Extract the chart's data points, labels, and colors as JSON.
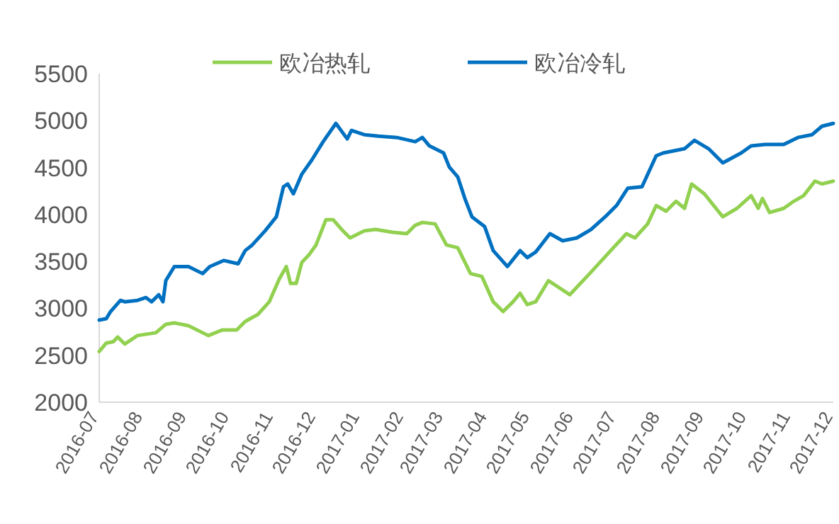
{
  "chart_data": {
    "type": "line",
    "legend": "top",
    "line_style": "solid",
    "marker": "none",
    "ylim": [
      2000,
      5500
    ],
    "yticks": [
      2000,
      2500,
      3000,
      3500,
      4000,
      4500,
      5000,
      5500
    ],
    "xlim": [
      "2016-07-01",
      "2017-12-01"
    ],
    "xticks": [
      "2016-07",
      "2016-08",
      "2016-09",
      "2016-10",
      "2016-11",
      "2016-12",
      "2017-01",
      "2017-02",
      "2017-03",
      "2017-04",
      "2017-05",
      "2017-06",
      "2017-07",
      "2017-08",
      "2017-09",
      "2017-10",
      "2017-11",
      "2017-12"
    ],
    "series": [
      {
        "name": "欧冶热轧",
        "color": "#92d050",
        "x": [
          "2016-07-01",
          "2016-07-06",
          "2016-07-11",
          "2016-07-14",
          "2016-07-19",
          "2016-07-28",
          "2016-08-10",
          "2016-08-17",
          "2016-08-23",
          "2016-09-02",
          "2016-09-16",
          "2016-09-26",
          "2016-10-06",
          "2016-10-12",
          "2016-10-21",
          "2016-10-29",
          "2016-11-05",
          "2016-11-10",
          "2016-11-13",
          "2016-11-17",
          "2016-11-21",
          "2016-11-26",
          "2016-12-01",
          "2016-12-08",
          "2016-12-13",
          "2016-12-20",
          "2016-12-25",
          "2017-01-04",
          "2017-01-12",
          "2017-01-24",
          "2017-02-03",
          "2017-02-09",
          "2017-02-14",
          "2017-02-23",
          "2017-03-03",
          "2017-03-11",
          "2017-03-20",
          "2017-03-28",
          "2017-04-05",
          "2017-04-12",
          "2017-04-19",
          "2017-04-24",
          "2017-04-29",
          "2017-05-05",
          "2017-05-14",
          "2017-05-20",
          "2017-05-29",
          "2017-06-13",
          "2017-06-26",
          "2017-07-08",
          "2017-07-14",
          "2017-07-23",
          "2017-07-29",
          "2017-08-05",
          "2017-08-12",
          "2017-08-18",
          "2017-08-23",
          "2017-09-01",
          "2017-09-14",
          "2017-09-24",
          "2017-10-04",
          "2017-10-09",
          "2017-10-12",
          "2017-10-17",
          "2017-10-27",
          "2017-11-03",
          "2017-11-10",
          "2017-11-18",
          "2017-11-23",
          "2017-12-01"
        ],
        "values": [
          2540,
          2630,
          2645,
          2695,
          2620,
          2710,
          2740,
          2830,
          2845,
          2815,
          2710,
          2770,
          2770,
          2860,
          2935,
          3070,
          3310,
          3445,
          3265,
          3265,
          3490,
          3570,
          3675,
          3945,
          3945,
          3825,
          3750,
          3825,
          3840,
          3810,
          3795,
          3885,
          3915,
          3900,
          3675,
          3645,
          3370,
          3340,
          3070,
          2965,
          3070,
          3160,
          3040,
          3070,
          3295,
          3235,
          3145,
          3385,
          3600,
          3795,
          3750,
          3900,
          4095,
          4035,
          4140,
          4065,
          4325,
          4220,
          3975,
          4065,
          4200,
          4065,
          4170,
          4020,
          4065,
          4140,
          4200,
          4355,
          4325,
          4355
        ]
      },
      {
        "name": "欧冶冷轧",
        "color": "#0070c0",
        "x": [
          "2016-07-01",
          "2016-07-06",
          "2016-07-09",
          "2016-07-16",
          "2016-07-19",
          "2016-07-28",
          "2016-08-03",
          "2016-08-07",
          "2016-08-12",
          "2016-08-15",
          "2016-08-17",
          "2016-08-23",
          "2016-09-02",
          "2016-09-12",
          "2016-09-17",
          "2016-09-27",
          "2016-10-07",
          "2016-10-12",
          "2016-10-17",
          "2016-10-26",
          "2016-11-03",
          "2016-11-08",
          "2016-11-11",
          "2016-11-15",
          "2016-11-21",
          "2016-11-28",
          "2016-12-06",
          "2016-12-15",
          "2016-12-23",
          "2016-12-26",
          "2017-01-04",
          "2017-01-14",
          "2017-01-27",
          "2017-02-09",
          "2017-02-14",
          "2017-02-19",
          "2017-03-01",
          "2017-03-05",
          "2017-03-11",
          "2017-03-16",
          "2017-03-21",
          "2017-03-30",
          "2017-04-05",
          "2017-04-15",
          "2017-04-24",
          "2017-04-29",
          "2017-05-05",
          "2017-05-15",
          "2017-05-24",
          "2017-06-03",
          "2017-06-13",
          "2017-06-23",
          "2017-07-01",
          "2017-07-09",
          "2017-07-19",
          "2017-07-29",
          "2017-08-03",
          "2017-08-08",
          "2017-08-18",
          "2017-08-25",
          "2017-09-04",
          "2017-09-14",
          "2017-09-27",
          "2017-10-04",
          "2017-10-14",
          "2017-10-27",
          "2017-11-06",
          "2017-11-16",
          "2017-11-23",
          "2017-12-01"
        ],
        "values": [
          2875,
          2890,
          2965,
          3085,
          3070,
          3085,
          3115,
          3070,
          3145,
          3070,
          3295,
          3445,
          3445,
          3370,
          3445,
          3510,
          3475,
          3615,
          3675,
          3825,
          3975,
          4295,
          4325,
          4220,
          4430,
          4580,
          4775,
          4970,
          4805,
          4895,
          4850,
          4835,
          4820,
          4775,
          4820,
          4730,
          4655,
          4505,
          4400,
          4170,
          3975,
          3870,
          3615,
          3445,
          3615,
          3540,
          3600,
          3795,
          3720,
          3750,
          3840,
          3975,
          4095,
          4280,
          4295,
          4625,
          4655,
          4670,
          4700,
          4790,
          4700,
          4550,
          4655,
          4730,
          4745,
          4745,
          4820,
          4850,
          4940,
          4970
        ]
      }
    ]
  }
}
